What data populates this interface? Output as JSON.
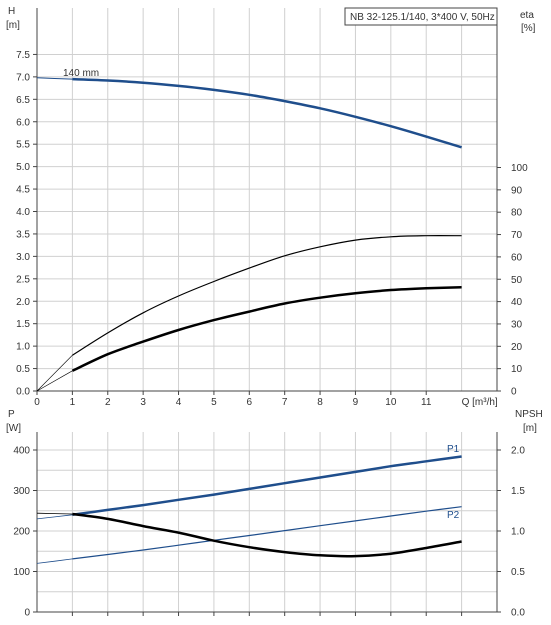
{
  "chart_data": [
    {
      "type": "line",
      "title": "NB 32-125.1/140, 3*400 V, 50Hz",
      "left_axis_label": [
        "H",
        "[m]"
      ],
      "right_axis_label": [
        "eta",
        "[%]"
      ],
      "xlabel": "Q [m³/h]",
      "xlim": [
        0,
        12
      ],
      "ylim_left": [
        0,
        8
      ],
      "ylim_right": [
        0,
        100
      ],
      "x_ticks": [
        "0",
        "1",
        "2",
        "3",
        "4",
        "5",
        "6",
        "7",
        "8",
        "9",
        "10",
        "11"
      ],
      "y_left_ticks": [
        "0.0",
        "0.5",
        "1.0",
        "1.5",
        "2.0",
        "2.5",
        "3.0",
        "3.5",
        "4.0",
        "4.5",
        "5.0",
        "5.5",
        "6.0",
        "6.5",
        "7.0",
        "7.5"
      ],
      "y_right_ticks": [
        "0",
        "10",
        "20",
        "30",
        "40",
        "50",
        "60",
        "70",
        "80",
        "90",
        "100"
      ],
      "grid": true,
      "series": [
        {
          "name": "140 mm",
          "axis": "left",
          "color": "#1f4e8c",
          "x": [
            0,
            1,
            2,
            3,
            4,
            5,
            6,
            7,
            8,
            9,
            10,
            11,
            12
          ],
          "y": [
            6.98,
            6.95,
            6.92,
            6.87,
            6.8,
            6.71,
            6.6,
            6.46,
            6.3,
            6.11,
            5.9,
            5.67,
            5.43
          ]
        },
        {
          "name": "",
          "axis": "right",
          "color": "#000000",
          "x": [
            1,
            2,
            3,
            4,
            5,
            6,
            7,
            8,
            9,
            10,
            11,
            12
          ],
          "y": [
            16.0,
            26.0,
            35.0,
            42.5,
            49.0,
            55.0,
            60.5,
            64.5,
            67.5,
            69.0,
            69.5,
            69.5
          ]
        },
        {
          "name": "",
          "axis": "left",
          "color": "#000000",
          "x": [
            1,
            2,
            3,
            4,
            5,
            6,
            7,
            8,
            9,
            10,
            11,
            12
          ],
          "y": [
            0.45,
            0.82,
            1.1,
            1.36,
            1.58,
            1.77,
            1.95,
            2.08,
            2.18,
            2.25,
            2.29,
            2.31
          ]
        }
      ]
    },
    {
      "type": "line",
      "left_axis_label": [
        "P",
        "[W]"
      ],
      "right_axis_label": [
        "NPSH",
        "[m]"
      ],
      "xlim": [
        0,
        12
      ],
      "ylim_left": [
        0,
        500
      ],
      "ylim_right": [
        0,
        2.5
      ],
      "y_left_ticks": [
        "0",
        "100",
        "200",
        "300",
        "400"
      ],
      "y_right_ticks": [
        "0.0",
        "0.5",
        "1.0",
        "1.5",
        "2.0"
      ],
      "grid": true,
      "series": [
        {
          "name": "P1",
          "axis": "left",
          "color": "#1f4e8c",
          "x": [
            0,
            1,
            2,
            3,
            4,
            5,
            6,
            7,
            8,
            9,
            10,
            11,
            12
          ],
          "y": [
            230,
            240,
            252,
            264,
            277,
            290,
            304,
            318,
            332,
            346,
            360,
            372,
            384
          ]
        },
        {
          "name": "P2",
          "axis": "left",
          "color": "#1f4e8c",
          "x": [
            0,
            1,
            2,
            3,
            4,
            5,
            6,
            7,
            8,
            9,
            10,
            11,
            12
          ],
          "y": [
            120,
            131,
            142,
            153,
            165,
            177,
            189,
            201,
            213,
            225,
            237,
            249,
            260
          ]
        },
        {
          "name": "",
          "axis": "right",
          "color": "#000000",
          "x": [
            0,
            1,
            2,
            3,
            4,
            5,
            6,
            7,
            8,
            9,
            10,
            11,
            12
          ],
          "y": [
            1.22,
            1.21,
            1.15,
            1.06,
            0.98,
            0.88,
            0.8,
            0.74,
            0.7,
            0.69,
            0.72,
            0.79,
            0.87
          ]
        }
      ]
    }
  ]
}
